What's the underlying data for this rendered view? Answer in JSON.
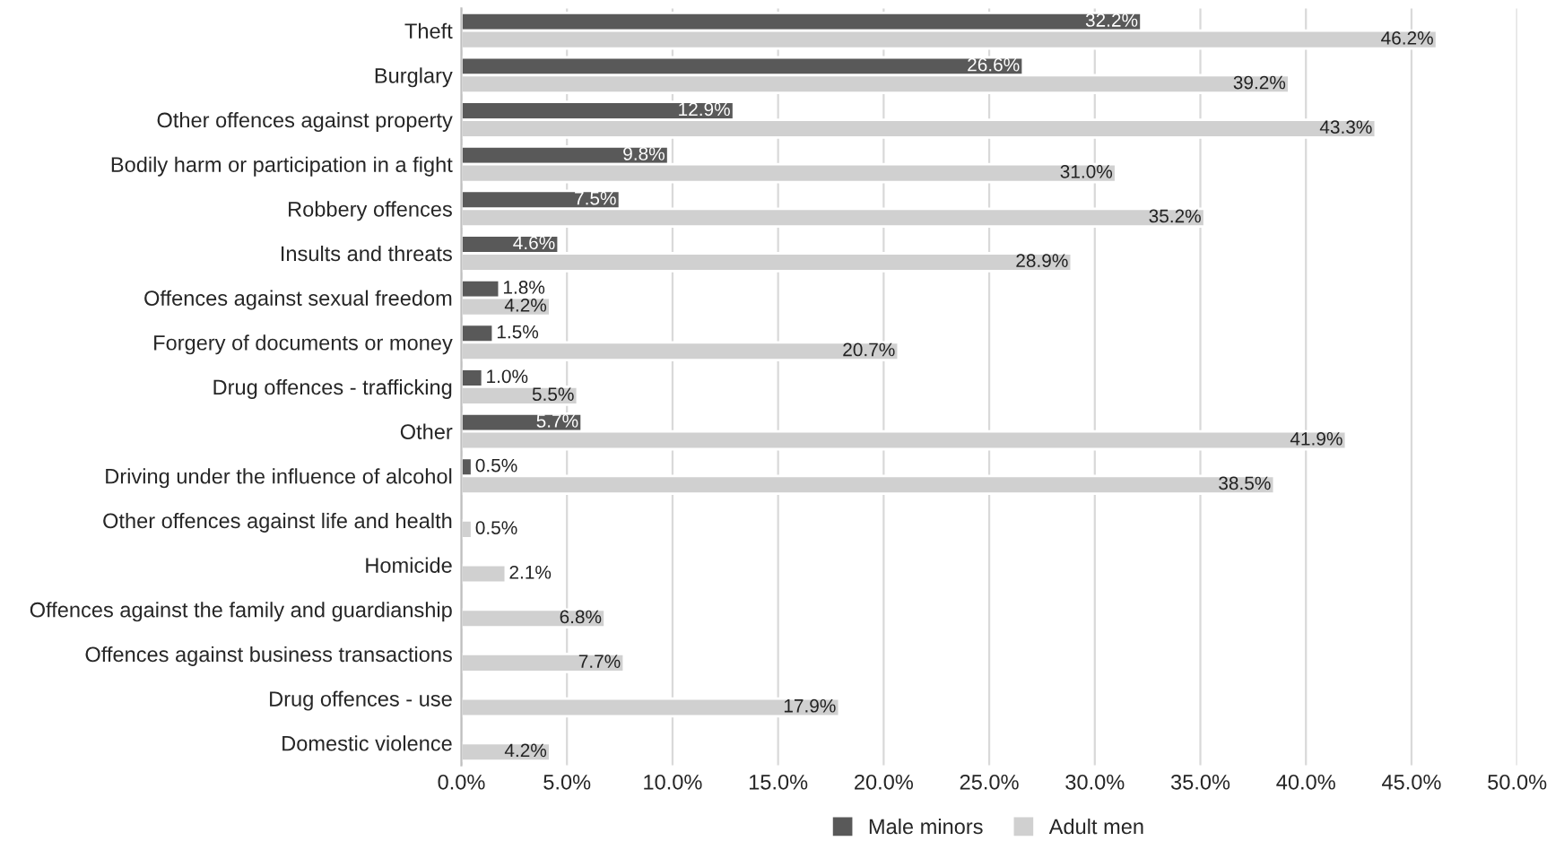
{
  "chart_data": {
    "type": "bar",
    "orientation": "horizontal",
    "categories": [
      "Theft",
      "Burglary",
      "Other offences against property",
      "Bodily harm or participation in a fight",
      "Robbery offences",
      "Insults and threats",
      "Offences against sexual freedom",
      "Forgery of documents or money",
      "Drug offences - trafficking",
      "Other",
      "Driving under the influence of alcohol",
      "Other offences against life and health",
      "Homicide",
      "Offences against the family and guardianship",
      "Offences against business transactions",
      "Drug offences - use",
      "Domestic violence"
    ],
    "series": [
      {
        "name": "Male minors",
        "color": "#595959",
        "values": [
          32.2,
          26.6,
          12.9,
          9.8,
          7.5,
          4.6,
          1.8,
          1.5,
          1.0,
          5.7,
          0.5,
          null,
          null,
          null,
          null,
          null,
          null
        ],
        "value_labels": [
          "32.2%",
          "26.6%",
          "12.9%",
          "9.8%",
          "7.5%",
          "4.6%",
          "1.8%",
          "1.5%",
          "1.0%",
          "5.7%",
          "0.5%",
          null,
          null,
          null,
          null,
          null,
          null
        ]
      },
      {
        "name": "Adult men",
        "color": "#d0d0d0",
        "values": [
          46.2,
          39.2,
          43.3,
          31.0,
          35.2,
          28.9,
          4.2,
          20.7,
          5.5,
          41.9,
          38.5,
          0.5,
          2.1,
          6.8,
          7.7,
          17.9,
          4.2
        ],
        "value_labels": [
          "46.2%",
          "39.2%",
          "43.3%",
          "31.0%",
          "35.2%",
          "28.9%",
          "4.2%",
          "20.7%",
          "5.5%",
          "41.9%",
          "38.5%",
          "0.5%",
          "2.1%",
          "6.8%",
          "7.7%",
          "17.9%",
          "4.2%"
        ]
      }
    ],
    "xlim": [
      0,
      50
    ],
    "xticks": [
      {
        "value": 0,
        "label": "0.0%"
      },
      {
        "value": 5,
        "label": "5.0%"
      },
      {
        "value": 10,
        "label": "10.0%"
      },
      {
        "value": 15,
        "label": "15.0%"
      },
      {
        "value": 20,
        "label": "20.0%"
      },
      {
        "value": 25,
        "label": "25.0%"
      },
      {
        "value": 30,
        "label": "30.0%"
      },
      {
        "value": 35,
        "label": "35.0%"
      },
      {
        "value": 40,
        "label": "40.0%"
      },
      {
        "value": 45,
        "label": "45.0%"
      },
      {
        "value": 50,
        "label": "50.0%"
      }
    ],
    "grid": "x",
    "legend": "bottom"
  }
}
